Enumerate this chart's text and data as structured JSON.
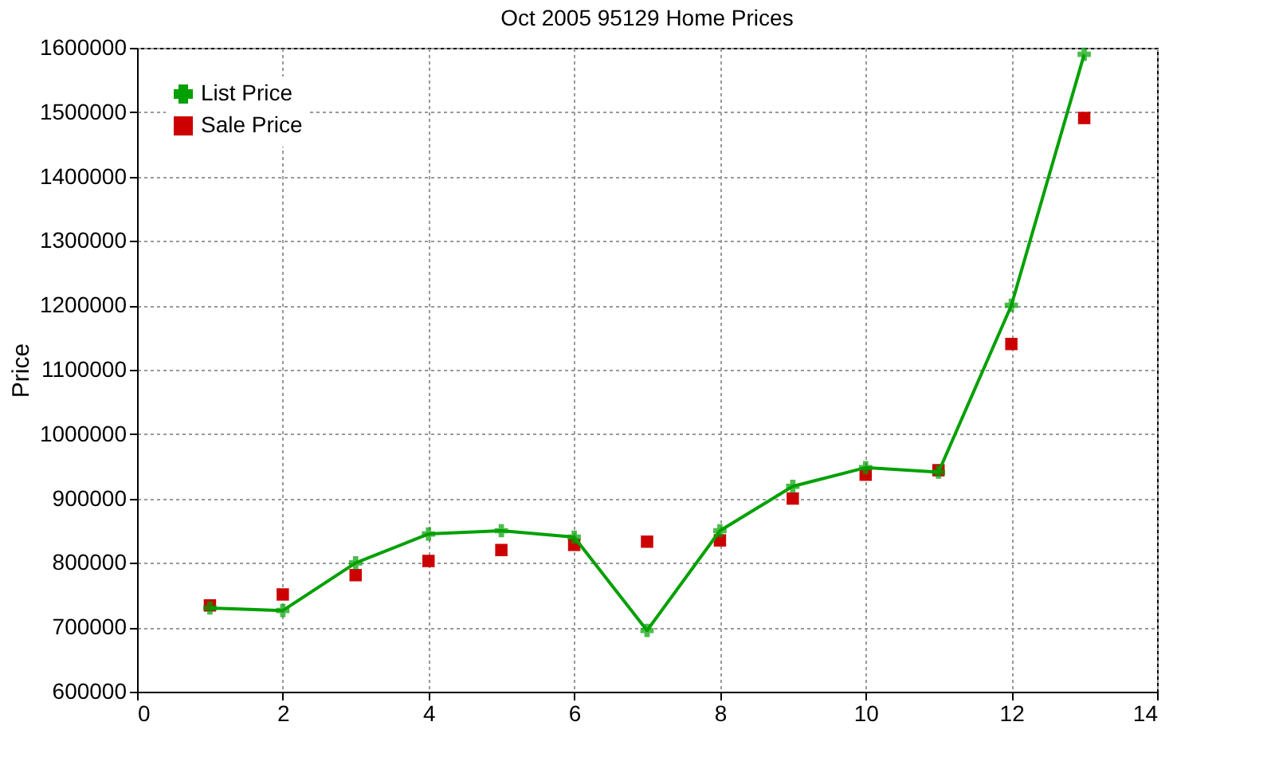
{
  "chart_data": {
    "type": "line",
    "title": "Oct 2005 95129 Home Prices",
    "ylabel": "Price",
    "x": [
      1,
      2,
      3,
      4,
      5,
      6,
      7,
      8,
      9,
      10,
      11,
      12,
      13
    ],
    "series": [
      {
        "name": "List Price",
        "marker": "cross",
        "color": "#00a000",
        "values": [
          730000,
          726000,
          800000,
          845000,
          850000,
          840000,
          695000,
          850000,
          919000,
          948000,
          941000,
          1200000,
          1590000
        ]
      },
      {
        "name": "Sale Price",
        "type": "scatter",
        "marker": "square",
        "color": "#cc0000",
        "values": [
          734000,
          751000,
          781000,
          803000,
          820000,
          828000,
          833000,
          835000,
          900000,
          937000,
          944000,
          1140000,
          1491000
        ]
      }
    ],
    "xlim": [
      0,
      14
    ],
    "xticks": [
      0,
      2,
      4,
      6,
      8,
      10,
      12,
      14
    ],
    "ylim": [
      600000,
      1600000
    ],
    "yticks": [
      600000,
      700000,
      800000,
      900000,
      1000000,
      1100000,
      1200000,
      1300000,
      1400000,
      1500000,
      1600000
    ],
    "grid": true,
    "legend": "top left"
  }
}
